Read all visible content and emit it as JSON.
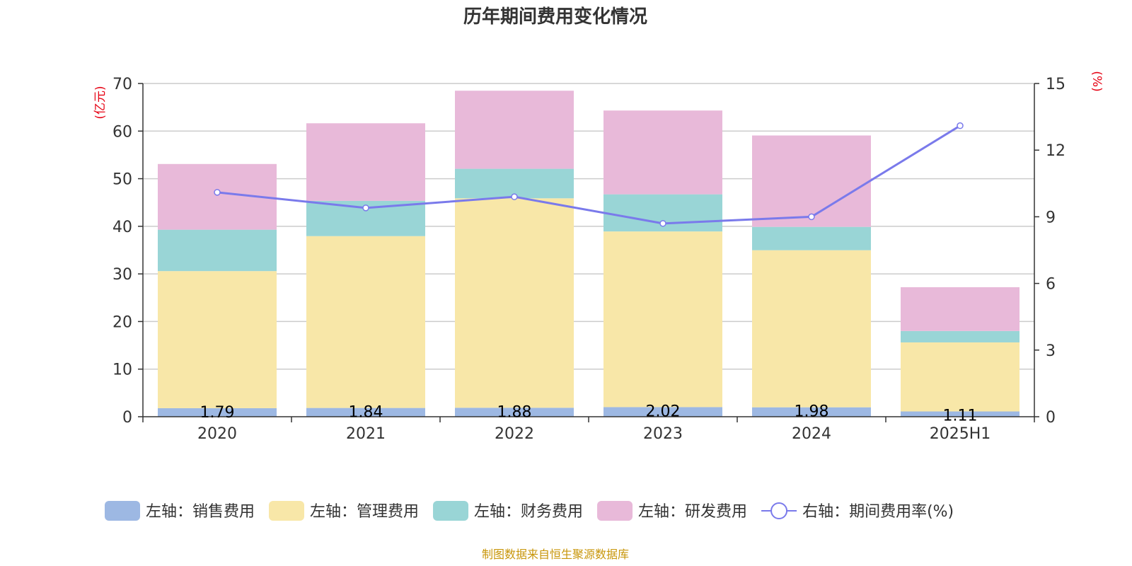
{
  "chart_data": {
    "type": "bar",
    "title": "历年期间费用变化情况",
    "categories": [
      "2020",
      "2021",
      "2022",
      "2023",
      "2024",
      "2025H1"
    ],
    "stacked": true,
    "y_left": {
      "unit": "(亿元)",
      "ylim": [
        0,
        70
      ],
      "ticks": [
        "0",
        "10",
        "20",
        "30",
        "40",
        "50",
        "60",
        "70"
      ]
    },
    "y_right": {
      "unit": "(%)",
      "ylim": [
        0,
        15
      ],
      "ticks": [
        "0",
        "3",
        "6",
        "9",
        "12",
        "15"
      ]
    },
    "grid": true,
    "legend_position": "bottom",
    "series": [
      {
        "name": "左轴：销售费用",
        "type": "bar",
        "axis": "left",
        "color": "#9db8e3",
        "values": [
          1.79,
          1.84,
          1.88,
          2.02,
          1.98,
          1.11
        ],
        "labels": [
          "1.79",
          "1.84",
          "1.88",
          "2.02",
          "1.98",
          "1.11"
        ]
      },
      {
        "name": "左轴：管理费用",
        "type": "bar",
        "axis": "left",
        "color": "#f8e7a8",
        "values": [
          28.8,
          36.1,
          44.0,
          36.9,
          33.0,
          14.5
        ]
      },
      {
        "name": "左轴：财务费用",
        "type": "bar",
        "axis": "left",
        "color": "#99d5d6",
        "values": [
          8.7,
          7.4,
          6.2,
          7.8,
          4.9,
          2.4
        ]
      },
      {
        "name": "左轴：研发费用",
        "type": "bar",
        "axis": "left",
        "color": "#e8b9d9",
        "values": [
          13.8,
          16.3,
          16.4,
          17.6,
          19.2,
          9.2
        ]
      },
      {
        "name": "右轴：期间费用率(%)",
        "type": "line",
        "axis": "right",
        "color": "#7a7aeb",
        "values": [
          10.1,
          9.4,
          9.9,
          8.7,
          9.0,
          13.1
        ]
      }
    ],
    "source": "制图数据来自恒生聚源数据库"
  }
}
